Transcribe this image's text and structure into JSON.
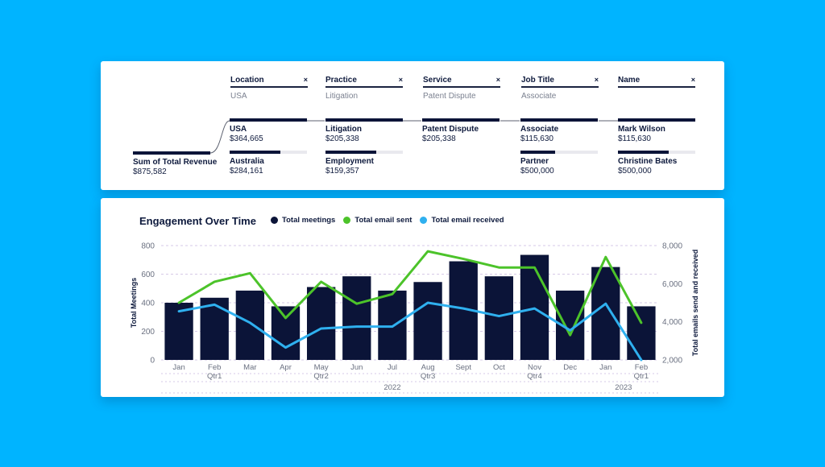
{
  "filters": [
    {
      "title": "Location",
      "value": "USA",
      "close": "×"
    },
    {
      "title": "Practice",
      "value": "Litigation",
      "close": "×"
    },
    {
      "title": "Service",
      "value": "Patent Dispute",
      "close": "×"
    },
    {
      "title": "Job Title",
      "value": "Associate",
      "close": "×"
    },
    {
      "title": "Name",
      "value": "",
      "close": "×"
    }
  ],
  "root": {
    "label": "Sum of Total Revenue",
    "amount": "$875,582",
    "fill": 1.0
  },
  "levels": [
    [
      {
        "label": "USA",
        "amount": "$364,665",
        "fill": 1.0
      },
      {
        "label": "Australia",
        "amount": "$284,161",
        "fill": 0.66
      }
    ],
    [
      {
        "label": "Litigation",
        "amount": "$205,338",
        "fill": 1.0
      },
      {
        "label": "Employment",
        "amount": "$159,357",
        "fill": 0.66
      }
    ],
    [
      {
        "label": "Patent Dispute",
        "amount": "$205,338",
        "fill": 1.0
      }
    ],
    [
      {
        "label": "Associate",
        "amount": "$115,630",
        "fill": 1.0
      },
      {
        "label": "Partner",
        "amount": "$500,000",
        "fill": 0.45
      }
    ],
    [
      {
        "label": "Mark Wilson",
        "amount": "$115,630",
        "fill": 1.0
      },
      {
        "label": "Christine Bates",
        "amount": "$500,000",
        "fill": 0.66
      }
    ]
  ],
  "colors": {
    "background": "#00b4ff",
    "bars": "#0b1438",
    "email_sent": "#4cc32a",
    "email_received": "#2fb0ef",
    "grid": "#c9b8e0"
  },
  "chart_data": {
    "type": "bar",
    "title": "Engagement Over Time",
    "categories": [
      "Jan",
      "Feb",
      "Mar",
      "Apr",
      "May",
      "Jun",
      "Jul",
      "Aug",
      "Sept",
      "Oct",
      "Nov",
      "Dec",
      "Jan",
      "Feb"
    ],
    "quarters": [
      {
        "label": "Qtr1",
        "index": 1
      },
      {
        "label": "Qtr2",
        "index": 4
      },
      {
        "label": "Qtr3",
        "index": 7
      },
      {
        "label": "Qtr4",
        "index": 10
      },
      {
        "label": "Qtr1",
        "index": 13
      }
    ],
    "years": [
      {
        "label": "2022",
        "index": 6
      },
      {
        "label": "2023",
        "index": 12.5
      }
    ],
    "series": [
      {
        "name": "Total meetings",
        "kind": "bar",
        "axis": "left",
        "values": [
          400,
          435,
          485,
          375,
          510,
          585,
          485,
          545,
          690,
          585,
          735,
          485,
          650,
          375
        ]
      },
      {
        "name": "Total email sent",
        "kind": "line",
        "axis": "right",
        "values": [
          5000,
          6100,
          6550,
          4200,
          6100,
          4950,
          5450,
          7700,
          7300,
          6850,
          6850,
          3300,
          7400,
          3950
        ]
      },
      {
        "name": "Total email received",
        "kind": "line",
        "axis": "right",
        "values": [
          4550,
          4900,
          3950,
          2650,
          3650,
          3750,
          3750,
          5000,
          4700,
          4300,
          4700,
          3550,
          4950,
          2000
        ]
      }
    ],
    "ylabel": "Total Meetings",
    "y2label": "Total emails send and received",
    "ylim": [
      0,
      800
    ],
    "y2lim": [
      2000,
      8000
    ],
    "yticks": [
      "0",
      "200",
      "400",
      "600",
      "800"
    ],
    "y2ticks": [
      "2,000",
      "4,000",
      "6,000",
      "8,000"
    ],
    "grid": true,
    "legend": "top"
  }
}
